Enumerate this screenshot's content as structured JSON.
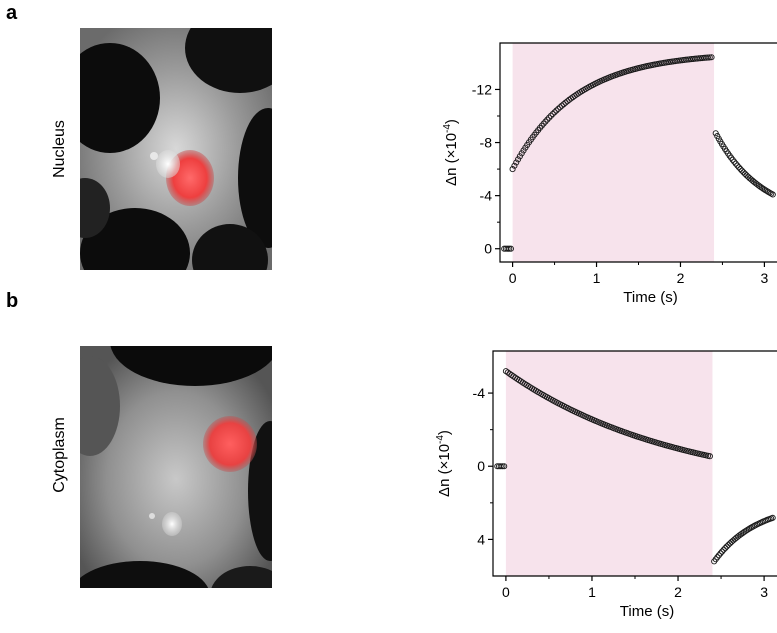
{
  "panels": [
    {
      "letter": "a",
      "side_label": "Nucleus",
      "image": {
        "subject": "cell-micrograph",
        "highlight": "nucleus",
        "highlight_color": "#ff4a4a"
      },
      "plot": {
        "ylabel_base": "Δn (×10",
        "ylabel_exp": "-4",
        "ylabel_tail": ")",
        "xlabel": "Time (s)",
        "x_ticks": [
          "0",
          "1",
          "2",
          "3"
        ],
        "y_ticks": [
          "0",
          "-4",
          "-8",
          "-12"
        ]
      }
    },
    {
      "letter": "b",
      "side_label": "Cytoplasm",
      "image": {
        "subject": "cell-micrograph",
        "highlight": "nucleus",
        "highlight_color": "#ff4a4a"
      },
      "plot": {
        "ylabel_base": "Δn (×10",
        "ylabel_exp": "-4",
        "ylabel_tail": ")",
        "xlabel": "Time (s)",
        "x_ticks": [
          "0",
          "1",
          "2",
          "3"
        ],
        "y_ticks": [
          "4",
          "0",
          "-4"
        ]
      }
    }
  ],
  "chart_data": [
    {
      "type": "scatter",
      "panel": "a",
      "xlabel": "Time (s)",
      "ylabel": "Δn (×10-4)",
      "xlim": [
        -0.15,
        3.15
      ],
      "ylim": [
        1,
        -15.5
      ],
      "y_inverted": true,
      "shaded_region": {
        "x_start": 0.0,
        "x_end": 2.4,
        "color": "#f7e3ec"
      },
      "series": [
        {
          "phase": "pre",
          "x": [
            -0.1,
            -0.08,
            -0.06,
            -0.04,
            -0.02
          ],
          "y": [
            0,
            0,
            0,
            0,
            0
          ]
        },
        {
          "phase": "on",
          "t_start": 0.0,
          "t_end": 2.37,
          "n": 110,
          "model": "rise",
          "y0": -6.0,
          "y_inf": -14.8,
          "tau": 0.75
        },
        {
          "phase": "off",
          "t_start": 2.42,
          "t_end": 3.1,
          "n": 38,
          "model": "decay",
          "y0": -8.7,
          "y_inf": -2.2,
          "tau": 0.55
        }
      ]
    },
    {
      "type": "scatter",
      "panel": "b",
      "xlabel": "Time (s)",
      "ylabel": "Δn (×10-4)",
      "xlim": [
        -0.15,
        3.15
      ],
      "ylim": [
        6.0,
        -6.3
      ],
      "y_inverted": true,
      "shaded_region": {
        "x_start": 0.0,
        "x_end": 2.4,
        "color": "#f7e3ec"
      },
      "series": [
        {
          "phase": "pre",
          "x": [
            -0.1,
            -0.08,
            -0.06,
            -0.04,
            -0.02
          ],
          "y": [
            0,
            0,
            0,
            0,
            0
          ]
        },
        {
          "phase": "on",
          "t_start": 0.0,
          "t_end": 2.37,
          "n": 110,
          "model": "decay",
          "y0": -5.2,
          "y_inf": 1.5,
          "tau": 2.0
        },
        {
          "phase": "off",
          "t_start": 2.42,
          "t_end": 3.1,
          "n": 38,
          "model": "rise_off",
          "y0": 5.2,
          "y_inf": 2.0,
          "tau": 0.5
        }
      ]
    }
  ]
}
